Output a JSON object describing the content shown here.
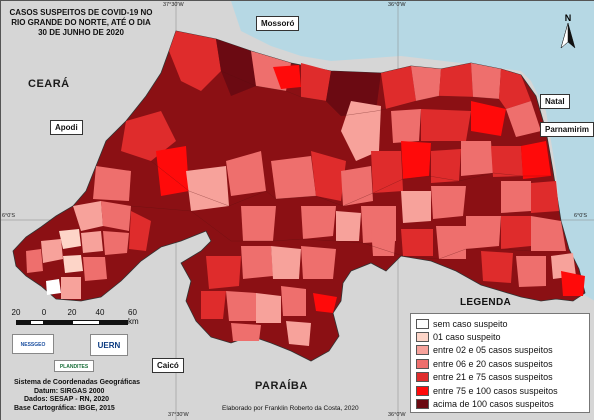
{
  "title": "CASOS SUSPEITOS DE COVID-19 NO RIO GRANDE DO NORTE, ATÉ O DIA 30 DE JUNHO DE 2020",
  "places": {
    "mossoro": "Mossoró",
    "apodi": "Apodi",
    "natal": "Natal",
    "parnamirim": "Parnamirim",
    "caico": "Caicó"
  },
  "states": {
    "ceara": "CEARÁ",
    "paraiba": "PARAÍBA"
  },
  "coordinates": {
    "top_left": "37°30'W",
    "top_right": "36°0'W",
    "bottom_left": "37°30'W",
    "bottom_right": "36°0'W",
    "left_lat": "6°0'S",
    "right_lat": "6°0'S"
  },
  "legend": {
    "title": "LEGENDA",
    "items": [
      {
        "label": "sem caso suspeito",
        "color": "#ffffff"
      },
      {
        "label": "01 caso suspeito",
        "color": "#fdd5c8"
      },
      {
        "label": "entre 02 e 05 casos suspeitos",
        "color": "#f7a29b"
      },
      {
        "label": "entre 06 e 20 casos suspeitos",
        "color": "#ee6f6d"
      },
      {
        "label": "entre 21 e 75 casos suspeitos",
        "color": "#df2c2c"
      },
      {
        "label": "entre 75 e 100 casos suspeitos",
        "color": "#ff0a0a"
      },
      {
        "label": "acima de 100 casos suspeitos",
        "color": "#6b0a12"
      }
    ]
  },
  "scale": {
    "labels": [
      "20",
      "0",
      "20",
      "40",
      "60 km"
    ]
  },
  "logos": {
    "nessgeo": "NESSGEO",
    "uern": "UERN",
    "plandites": "PLANDITES"
  },
  "credits": {
    "line1": "Sistema de Coordenadas Geográficas",
    "line2": "Datum: SIRGAS 2000",
    "line3": "Dados: SESAP - RN, 2020",
    "line4": "Base Cartográfica: IBGE, 2015"
  },
  "author": "Elaborado por Franklin Roberto da Costa, 2020",
  "north_label": "N",
  "colors": {
    "sea": "#b6d8e4",
    "neighbor": "#d6d6d6",
    "frame": "#c9d3d6"
  }
}
